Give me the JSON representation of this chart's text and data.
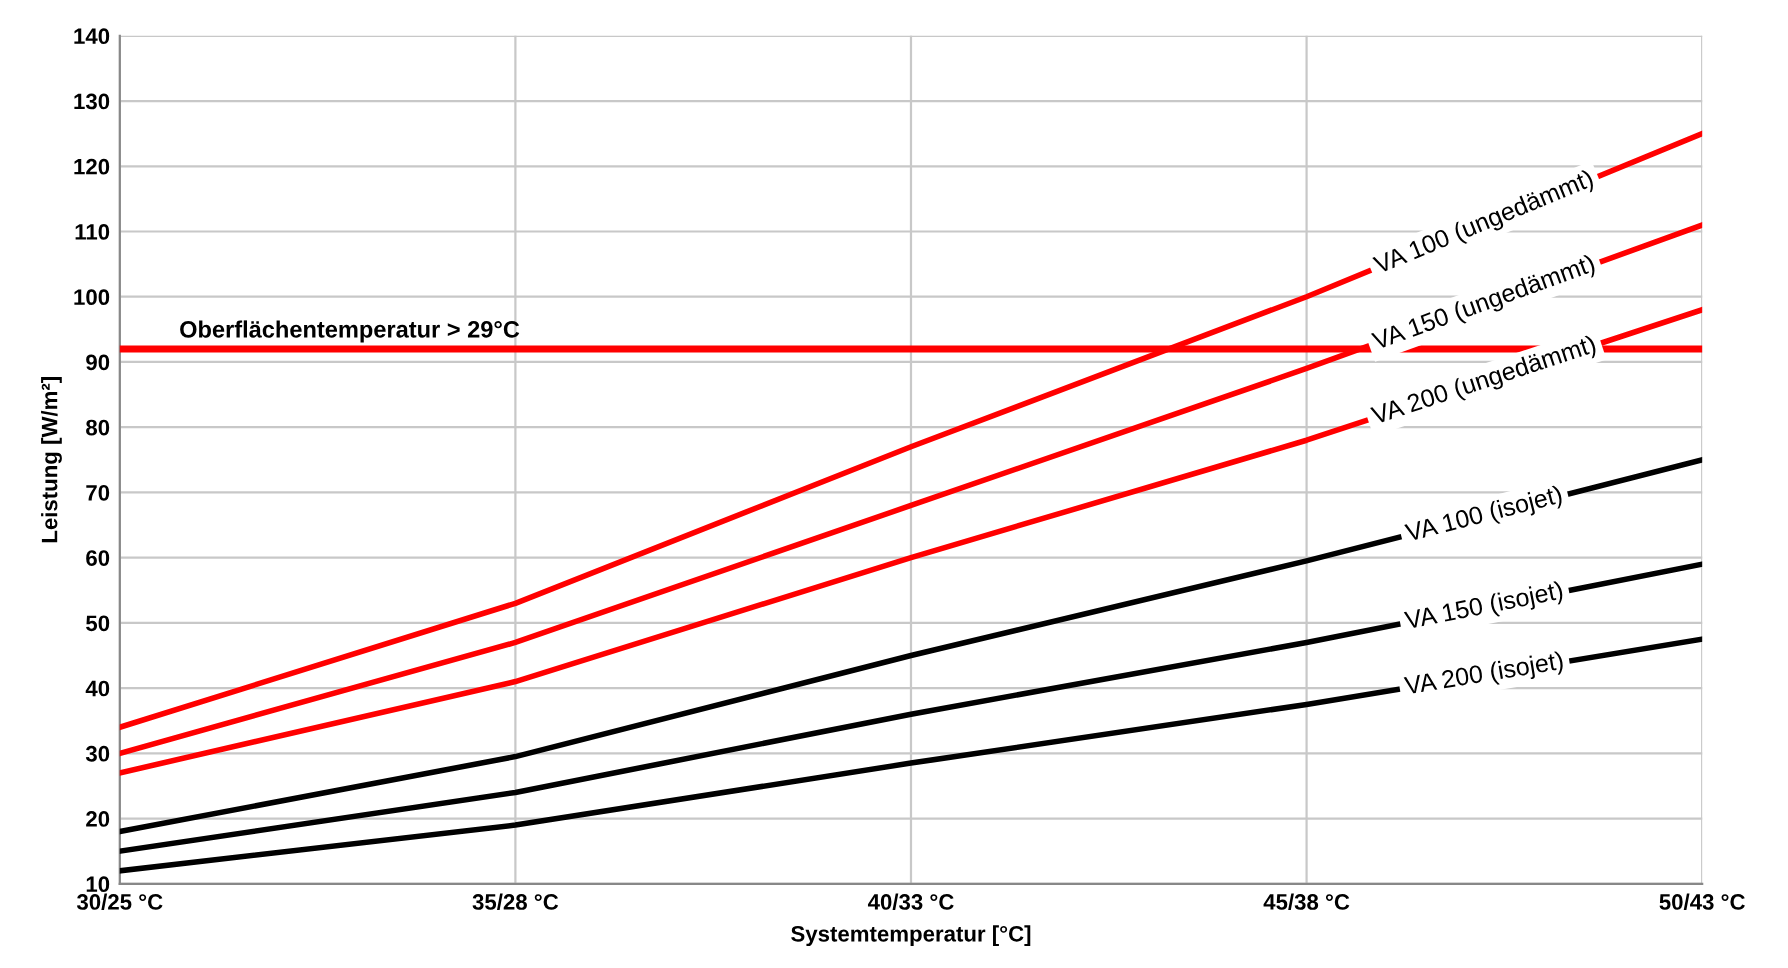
{
  "chart_data": {
    "type": "line",
    "xlabel": "Systemtemperatur [°C]",
    "ylabel": "Leistung [W/m²]",
    "categories": [
      "30/25 °C",
      "35/28 °C",
      "40/33 °C",
      "45/38 °C",
      "50/43 °C"
    ],
    "ylim": [
      10,
      140
    ],
    "yticks": [
      10,
      20,
      30,
      40,
      50,
      60,
      70,
      80,
      90,
      100,
      110,
      120,
      130,
      140
    ],
    "grid": true,
    "legend": false,
    "marker": "none",
    "line_style": "solid",
    "series": [
      {
        "name": "VA 100 (ungedämmt)",
        "color": "#ff0000",
        "values": [
          34,
          53,
          77,
          100,
          125
        ]
      },
      {
        "name": "VA 150 (ungedämmt)",
        "color": "#ff0000",
        "values": [
          30,
          47,
          68,
          89,
          111
        ]
      },
      {
        "name": "VA 200 (ungedämmt)",
        "color": "#ff0000",
        "values": [
          27,
          41,
          60,
          78,
          98
        ]
      },
      {
        "name": "VA 100 (isojet)",
        "color": "#000000",
        "values": [
          18,
          29.5,
          45,
          59.5,
          75
        ]
      },
      {
        "name": "VA 150 (isojet)",
        "color": "#000000",
        "values": [
          15,
          24,
          36,
          47,
          59
        ]
      },
      {
        "name": "VA 200 (isojet)",
        "color": "#000000",
        "values": [
          12,
          19,
          28.5,
          37.5,
          47.5
        ]
      }
    ],
    "ref_lines": [
      {
        "axis": "y",
        "value": 92,
        "label": "Oberflächentemperatur > 29°C",
        "color": "#ff0000",
        "line_style": "solid"
      }
    ]
  }
}
